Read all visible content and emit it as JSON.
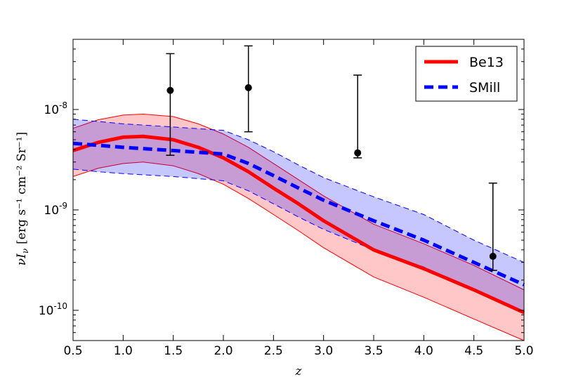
{
  "chart_data": {
    "type": "line",
    "xlabel": "z",
    "ylabel_main": "νI",
    "ylabel_sub": "ν",
    "ylabel_units": "[erg s⁻¹ cm⁻² Sr⁻¹]",
    "xlim": [
      0.5,
      5.0
    ],
    "ylim": [
      5e-11,
      5e-08
    ],
    "yscale": "log",
    "legend_position": "top-right",
    "x_ticks": [
      0.5,
      1.0,
      1.5,
      2.0,
      2.5,
      3.0,
      3.5,
      4.0,
      4.5,
      5.0
    ],
    "x_tick_labels": [
      "0.5",
      "1.0",
      "1.5",
      "2.0",
      "2.5",
      "3.0",
      "3.5",
      "4.0",
      "4.5",
      "5.0"
    ],
    "y_ticks": [
      {
        "value": 1e-08,
        "base": "10",
        "exp": "-8"
      },
      {
        "value": 1e-09,
        "base": "10",
        "exp": "-9"
      },
      {
        "value": 1e-10,
        "base": "10",
        "exp": "-10"
      }
    ],
    "series": [
      {
        "name": "Be13",
        "color": "#ff0000",
        "style": "solid",
        "x": [
          0.5,
          0.75,
          1.0,
          1.2,
          1.5,
          1.75,
          2.0,
          2.25,
          2.5,
          2.75,
          3.0,
          3.5,
          4.0,
          4.5,
          5.0
        ],
        "y": [
          3.9e-09,
          4.7e-09,
          5.3e-09,
          5.4e-09,
          5e-09,
          4.2e-09,
          3.3e-09,
          2.4e-09,
          1.65e-09,
          1.15e-09,
          7.8e-10,
          4e-10,
          2.6e-10,
          1.6e-10,
          9.5e-11
        ],
        "lower": [
          2.15e-09,
          2.6e-09,
          2.9e-09,
          3e-09,
          2.75e-09,
          2.3e-09,
          1.8e-09,
          1.3e-09,
          9e-10,
          6.2e-10,
          4.2e-10,
          2.15e-10,
          1.35e-10,
          8.2e-11,
          5e-11
        ],
        "upper": [
          6.5e-09,
          7.9e-09,
          8.8e-09,
          9e-09,
          8.5e-09,
          7.2e-09,
          5.7e-09,
          4.2e-09,
          2.9e-09,
          2e-09,
          1.38e-09,
          7.2e-10,
          4.6e-10,
          2.8e-10,
          1.6e-10
        ]
      },
      {
        "name": "SMill",
        "color": "#0000ff",
        "style": "dashed",
        "x": [
          0.5,
          0.75,
          1.0,
          1.5,
          2.0,
          2.25,
          2.5,
          2.75,
          3.0,
          3.5,
          4.0,
          4.5,
          5.0
        ],
        "y": [
          4.6e-09,
          4.4e-09,
          4.2e-09,
          3.9e-09,
          3.6e-09,
          2.9e-09,
          2.2e-09,
          1.65e-09,
          1.25e-09,
          7.8e-10,
          5e-10,
          3e-10,
          1.8e-10
        ],
        "lower": [
          2.55e-09,
          2.4e-09,
          2.3e-09,
          2.15e-09,
          1.95e-09,
          1.55e-09,
          1.15e-09,
          8.5e-10,
          6.4e-10,
          4e-10,
          2.7e-10,
          1.6e-10,
          9.5e-11
        ],
        "upper": [
          8e-09,
          7.6e-09,
          7.2e-09,
          6.7e-09,
          6.2e-09,
          5e-09,
          3.8e-09,
          2.8e-09,
          2.1e-09,
          1.35e-09,
          9e-10,
          5e-10,
          3e-10
        ]
      }
    ],
    "points": [
      {
        "x": 1.47,
        "y": 1.55e-08,
        "lo": 3.5e-09,
        "hi": 3.6e-08
      },
      {
        "x": 2.25,
        "y": 1.65e-08,
        "lo": 6e-09,
        "hi": 4.3e-08
      },
      {
        "x": 3.34,
        "y": 3.7e-09,
        "lo": 3.3e-09,
        "hi": 2.2e-08
      },
      {
        "x": 4.69,
        "y": 3.45e-10,
        "lo": 2.5e-10,
        "hi": 1.85e-09
      }
    ]
  }
}
